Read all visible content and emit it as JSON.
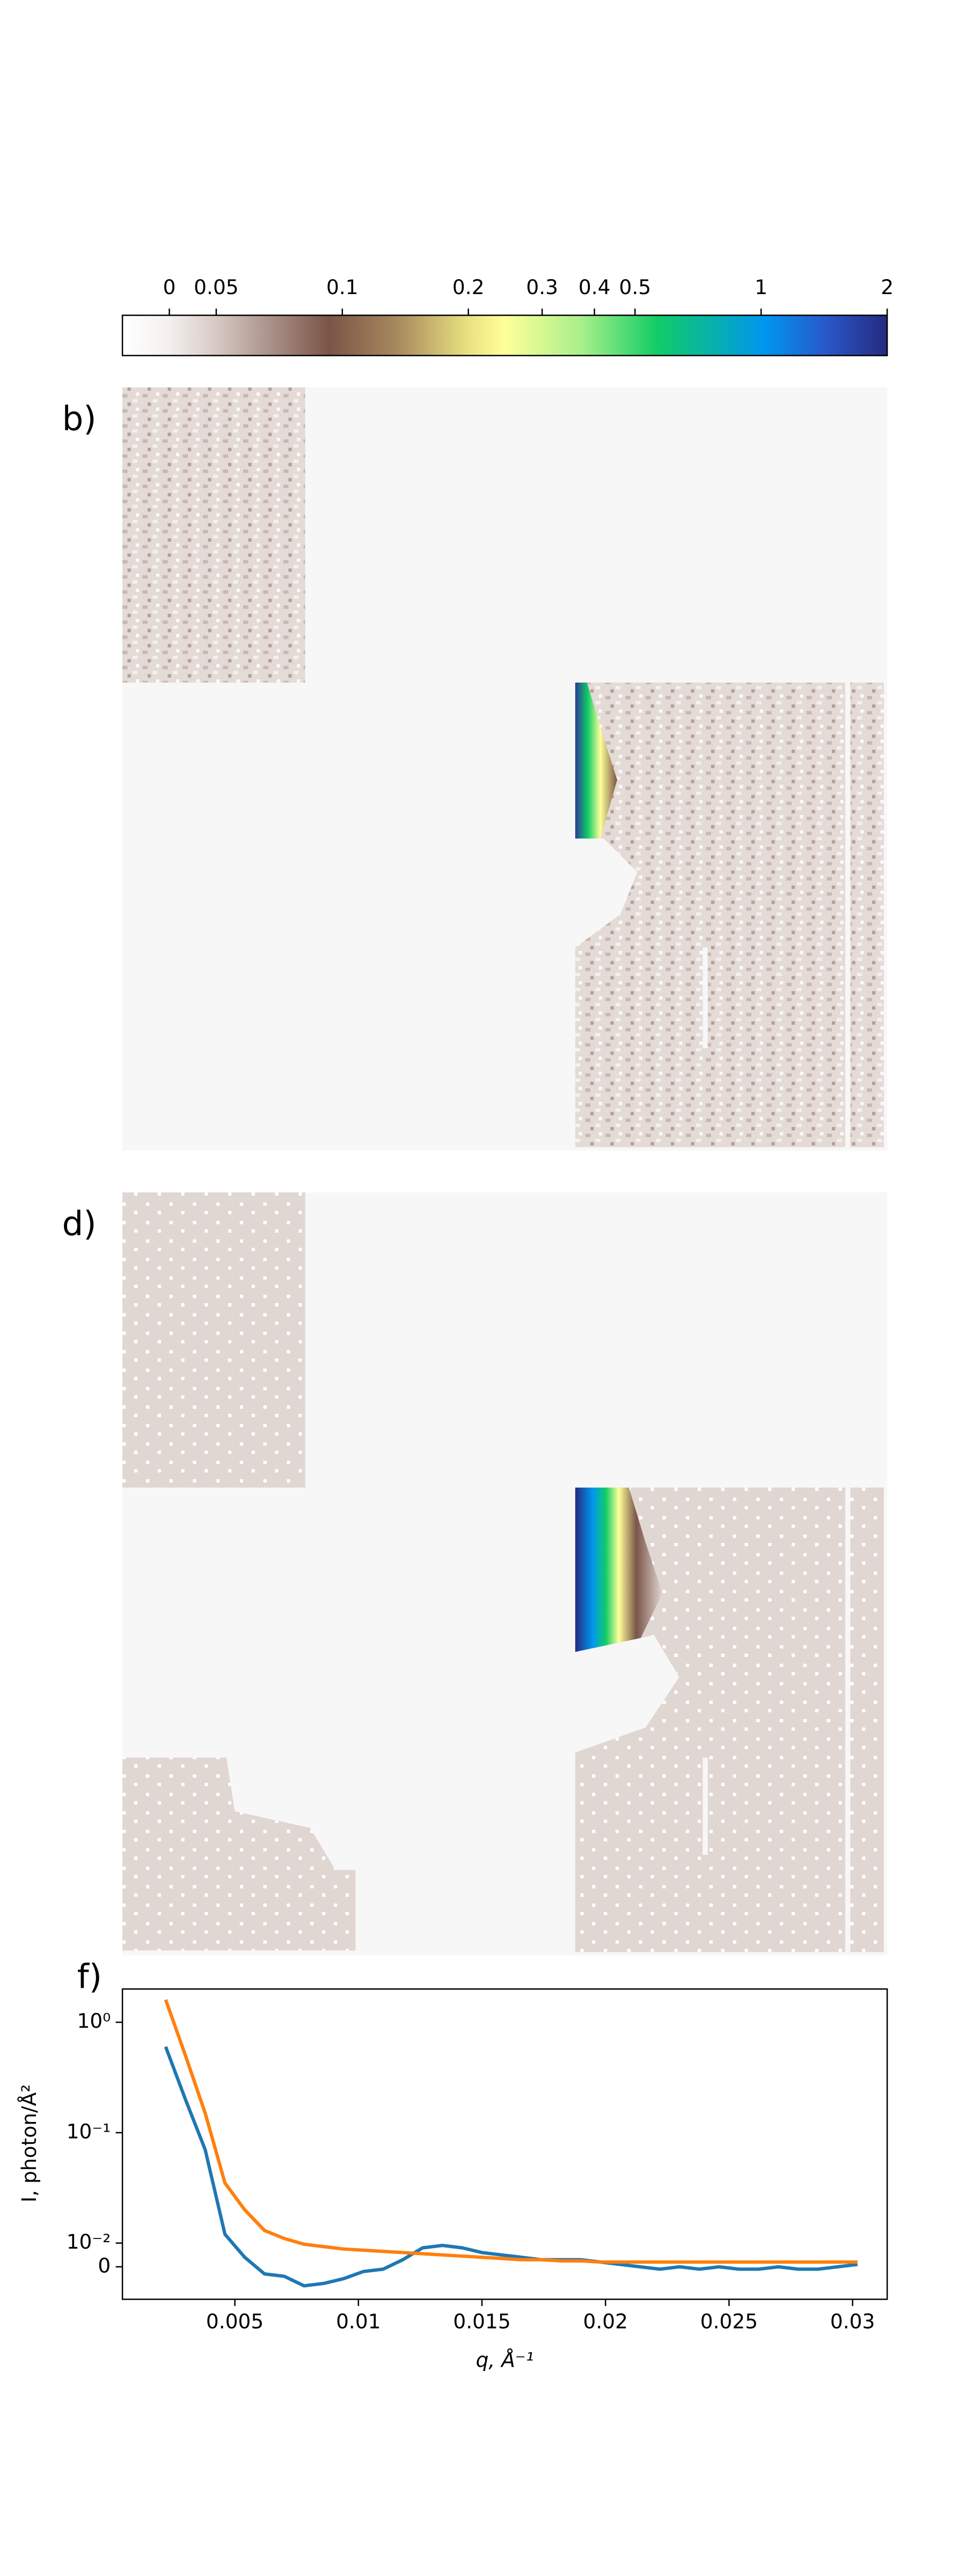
{
  "chart_data": [
    {
      "type": "colorbar",
      "scale": "symlog",
      "linthresh": 0.05,
      "linscale": 0.112,
      "clim": [
        -0.05,
        2
      ],
      "ticks": [
        0,
        0.05,
        0.1,
        0.2,
        0.3,
        0.4,
        0.5,
        1,
        2
      ]
    },
    {
      "type": "image",
      "panel_label": "b)"
    },
    {
      "type": "image",
      "panel_label": "d)"
    },
    {
      "type": "line",
      "panel_label": "f)",
      "x_label": "q, Å⁻¹",
      "y_label": "I, photon/Å²",
      "yscale": "symlog",
      "linthresh": 0.01,
      "linscale": 0.215,
      "xlim": [
        0.00045,
        0.0314
      ],
      "ylim": [
        -0.012,
        2
      ],
      "xticks": [
        0.005,
        0.01,
        0.015,
        0.02,
        0.025,
        0.03
      ],
      "yticks": [
        0,
        {
          "value": 0.01,
          "label": "10⁻²"
        },
        {
          "value": 0.1,
          "label": "10⁻¹"
        },
        {
          "value": 1,
          "label": "10⁰"
        }
      ],
      "x": [
        0.0022,
        0.003,
        0.0038,
        0.0046,
        0.0054,
        0.0062,
        0.007,
        0.0078,
        0.0086,
        0.0094,
        0.0102,
        0.011,
        0.0118,
        0.0126,
        0.0134,
        0.0142,
        0.015,
        0.0158,
        0.0166,
        0.0174,
        0.0182,
        0.019,
        0.0198,
        0.0206,
        0.0214,
        0.0222,
        0.023,
        0.0238,
        0.0246,
        0.0254,
        0.0262,
        0.027,
        0.0278,
        0.0286,
        0.0294,
        0.0302
      ],
      "series": [
        {
          "color": "#1f77b4",
          "values": [
            0.6,
            0.2,
            0.07,
            0.012,
            0.004,
            -0.003,
            -0.004,
            -0.008,
            -0.007,
            -0.005,
            -0.002,
            -0.001,
            0.003,
            0.008,
            0.009,
            0.008,
            0.006,
            0.005,
            0.004,
            0.003,
            0.003,
            0.003,
            0.002,
            0.001,
            0,
            -0.001,
            0,
            -0.001,
            0,
            -0.001,
            -0.001,
            0,
            -0.001,
            -0.001,
            0,
            0.001
          ]
        },
        {
          "color": "#ff7f0e",
          "values": [
            1.6,
            0.5,
            0.15,
            0.035,
            0.02,
            0.013,
            0.011,
            0.0095,
            0.0085,
            0.0075,
            0.007,
            0.0065,
            0.006,
            0.0055,
            0.005,
            0.0045,
            0.004,
            0.0035,
            0.003,
            0.003,
            0.0025,
            0.0025,
            0.002,
            0.002,
            0.002,
            0.002,
            0.002,
            0.002,
            0.002,
            0.002,
            0.002,
            0.002,
            0.002,
            0.002,
            0.002,
            0.002
          ]
        }
      ]
    }
  ]
}
